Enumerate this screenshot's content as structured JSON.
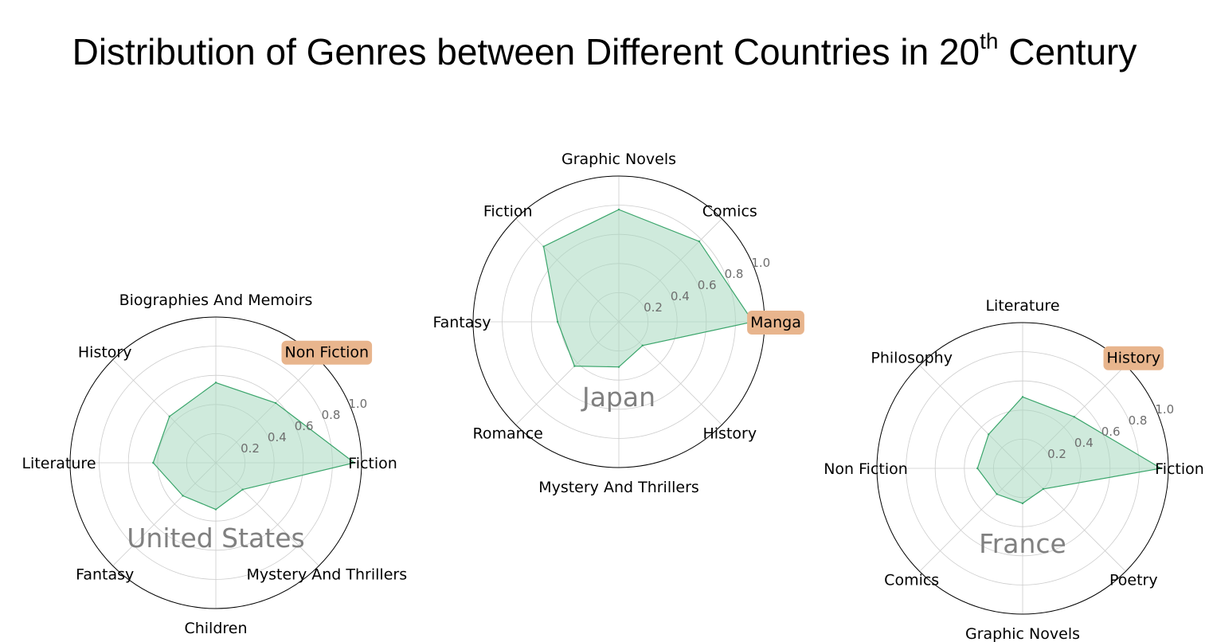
{
  "title": {
    "prefix": "Distribution of Genres between Different Countries in 20",
    "superscript": "th",
    "suffix": " Century"
  },
  "colors": {
    "fill": "#a8d8bf",
    "stroke": "#3aa56b",
    "highlight": "#e8b58d",
    "grid": "#cccccc",
    "tick_text": "#6e6e6e",
    "country_text": "#808080"
  },
  "chart_data": [
    {
      "type": "radar",
      "country": "United States",
      "categories": [
        "Fiction",
        "Non Fiction",
        "Biographies And Memoirs",
        "History",
        "Literature",
        "Fantasy",
        "Children",
        "Mystery And Thrillers"
      ],
      "values": [
        0.95,
        0.58,
        0.55,
        0.45,
        0.43,
        0.32,
        0.32,
        0.26
      ],
      "highlight": "Non Fiction",
      "rlim": [
        0,
        1.0
      ],
      "rticks": [
        "0.2",
        "0.4",
        "0.6",
        "0.8",
        "1.0"
      ]
    },
    {
      "type": "radar",
      "country": "Japan",
      "categories": [
        "Manga",
        "Comics",
        "Graphic Novels",
        "Fiction",
        "Fantasy",
        "Romance",
        "Mystery And Thrillers",
        "History"
      ],
      "values": [
        0.92,
        0.78,
        0.77,
        0.73,
        0.42,
        0.43,
        0.31,
        0.23
      ],
      "highlight": "Manga",
      "rlim": [
        0,
        1.0
      ],
      "rticks": [
        "0.2",
        "0.4",
        "0.6",
        "0.8",
        "1.0"
      ]
    },
    {
      "type": "radar",
      "country": "France",
      "categories": [
        "Fiction",
        "History",
        "Literature",
        "Philosophy",
        "Non Fiction",
        "Comics",
        "Graphic Novels",
        "Poetry"
      ],
      "values": [
        0.95,
        0.5,
        0.49,
        0.33,
        0.31,
        0.25,
        0.24,
        0.2
      ],
      "highlight": "History",
      "rlim": [
        0,
        1.0
      ],
      "rticks": [
        "0.2",
        "0.4",
        "0.6",
        "0.8",
        "1.0"
      ]
    }
  ]
}
